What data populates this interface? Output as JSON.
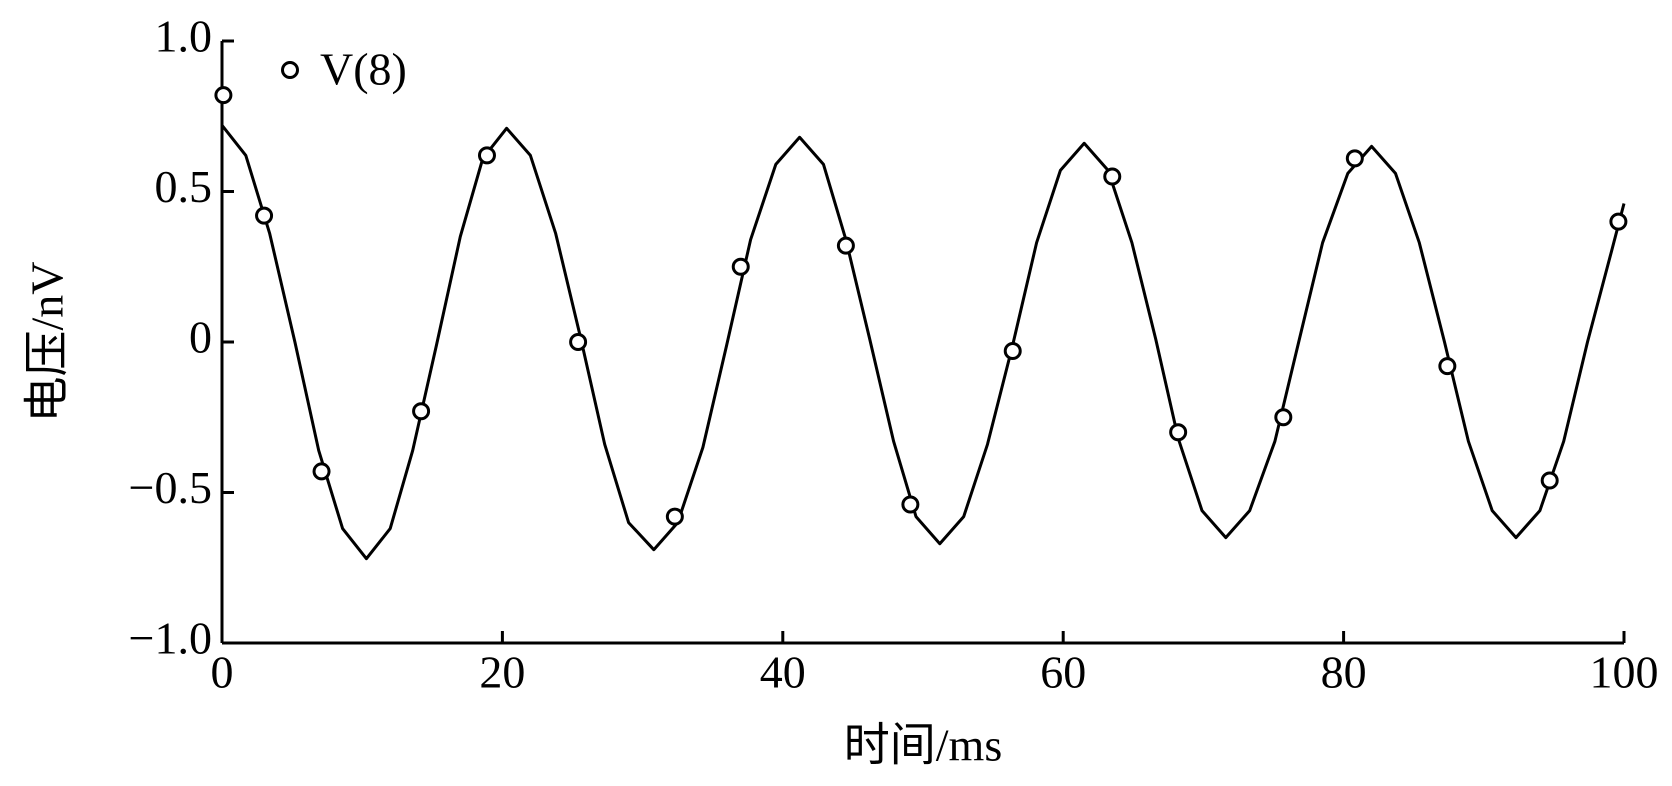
{
  "chart_data": {
    "type": "line",
    "xlabel": "时间/ms",
    "ylabel": "电压/nV",
    "xlim": [
      0,
      100
    ],
    "xticks": [
      0,
      20,
      40,
      60,
      80,
      100
    ],
    "ylim": [
      -1,
      1
    ],
    "yticks": [
      {
        "value": -1,
        "label": "−1.0"
      },
      {
        "value": -0.5,
        "label": "−0.5"
      },
      0,
      0.5,
      {
        "value": 1,
        "label": "1.0"
      }
    ],
    "legend": "upper left",
    "series": [
      {
        "style": "line",
        "color": "#000000",
        "x": [
          0,
          1.7,
          3.4,
          5.2,
          6.9,
          8.6,
          10.3,
          12.0,
          13.6,
          15.3,
          17.0,
          18.6,
          20.3,
          22.0,
          23.8,
          25.6,
          27.3,
          29.0,
          30.8,
          32.5,
          34.3,
          36.0,
          37.7,
          39.5,
          41.2,
          42.9,
          44.5,
          46.2,
          47.9,
          49.5,
          51.2,
          52.9,
          54.6,
          56.4,
          58.1,
          59.8,
          61.5,
          63.2,
          64.9,
          66.6,
          68.2,
          69.9,
          71.6,
          73.3,
          75.1,
          76.8,
          78.5,
          80.3,
          82.0,
          83.7,
          85.4,
          87.2,
          88.9,
          90.6,
          92.3,
          94.0,
          95.7,
          97.4,
          99.1,
          100
        ],
        "values": [
          0.72,
          0.62,
          0.36,
          0,
          -0.36,
          -0.62,
          -0.72,
          -0.62,
          -0.36,
          -0.01,
          0.35,
          0.61,
          0.71,
          0.62,
          0.36,
          0.01,
          -0.34,
          -0.6,
          -0.69,
          -0.6,
          -0.35,
          -0.01,
          0.34,
          0.59,
          0.68,
          0.59,
          0.34,
          0.01,
          -0.33,
          -0.58,
          -0.67,
          -0.58,
          -0.34,
          -0.01,
          0.33,
          0.57,
          0.66,
          0.57,
          0.33,
          0.01,
          -0.32,
          -0.56,
          -0.65,
          -0.56,
          -0.33,
          0,
          0.33,
          0.56,
          0.65,
          0.56,
          0.33,
          0,
          -0.33,
          -0.56,
          -0.65,
          -0.56,
          -0.33,
          0,
          0.3,
          0.46
        ]
      },
      {
        "name": "V(8)",
        "style": "markers",
        "color": "#000000",
        "x": [
          0.1,
          3,
          7.1,
          14.2,
          18.9,
          25.4,
          32.3,
          37,
          44.5,
          49.1,
          56.4,
          63.5,
          68.2,
          75.7,
          80.8,
          87.4,
          94.7,
          99.6
        ],
        "values": [
          0.82,
          0.42,
          -0.43,
          -0.23,
          0.62,
          0,
          -0.58,
          0.25,
          0.32,
          -0.54,
          -0.03,
          0.55,
          -0.3,
          -0.25,
          0.61,
          -0.08,
          -0.46,
          0.4
        ]
      }
    ]
  }
}
